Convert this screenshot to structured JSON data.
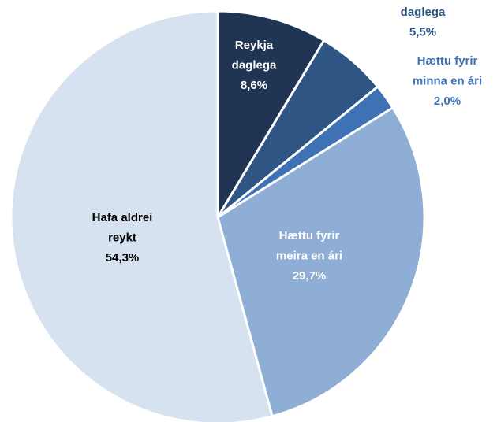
{
  "chart_data": {
    "type": "pie",
    "categories": [
      [
        "Reykja",
        "daglega"
      ],
      [
        "daglega"
      ],
      [
        "Hættu fyrir",
        "minna en ári"
      ],
      [
        "Hættu fyrir",
        "meira en ári"
      ],
      [
        "Hafa aldrei",
        "reykt"
      ]
    ],
    "values": [
      8.6,
      5.5,
      2.0,
      29.7,
      54.3
    ],
    "value_labels": [
      "8,6%",
      "5,5%",
      "2,0%",
      "29,7%",
      "54,3%"
    ],
    "colors": [
      "#1f3553",
      "#2f5585",
      "#3f72b5",
      "#8eaed6",
      "#d6e2ef"
    ]
  }
}
